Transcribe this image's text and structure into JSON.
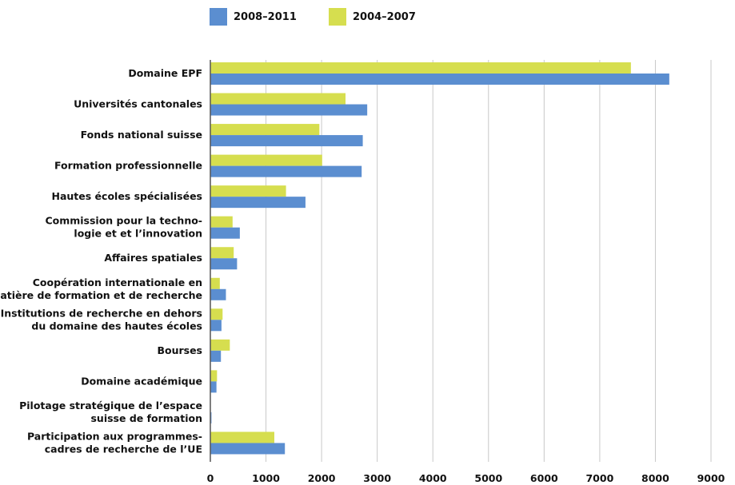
{
  "colors": {
    "series_2008_2011": "#5b8ed0",
    "series_2004_2007": "#d6de4f",
    "grid": "#c8c8c8",
    "axis": "#555555"
  },
  "chart_data": {
    "type": "bar",
    "orientation": "horizontal",
    "legend_position": "top",
    "grid": true,
    "xlim": [
      0,
      9000
    ],
    "x_ticks": [
      0,
      1000,
      2000,
      3000,
      4000,
      5000,
      6000,
      7000,
      8000,
      9000
    ],
    "categories": [
      [
        "Domaine EPF"
      ],
      [
        "Universités cantonales"
      ],
      [
        "Fonds national suisse"
      ],
      [
        "Formation professionnelle"
      ],
      [
        "Hautes écoles spécialisées"
      ],
      [
        "Commission pour la techno-",
        "logie et et l’innovation"
      ],
      [
        "Affaires spatiales"
      ],
      [
        "Coopération internationale en",
        "matière de formation et de recherche"
      ],
      [
        "Institutions de recherche en dehors",
        "du domaine des hautes écoles"
      ],
      [
        "Bourses"
      ],
      [
        "Domaine académique"
      ],
      [
        "Pilotage stratégique de l’espace",
        "suisse de formation"
      ],
      [
        "Participation aux programmes-",
        "cadres de recherche de l’UE"
      ]
    ],
    "series": [
      {
        "name": "2008–2011",
        "color": "#5b8ed0",
        "values": [
          8250,
          2820,
          2740,
          2720,
          1710,
          530,
          480,
          280,
          200,
          190,
          110,
          20,
          1340
        ]
      },
      {
        "name": "2004–2007",
        "color": "#d6de4f",
        "values": [
          7560,
          2430,
          1960,
          2010,
          1360,
          400,
          420,
          170,
          220,
          350,
          120,
          0,
          1150
        ]
      }
    ]
  }
}
